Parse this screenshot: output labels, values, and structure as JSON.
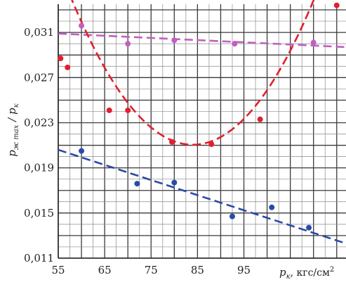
{
  "chart_data": {
    "type": "scatter",
    "xlabel_symbol": "p",
    "xlabel_subscript": "к",
    "xlabel_unit": ", кгс/см",
    "xlabel_unit_sup": "2",
    "ylabel_num_symbol": "p",
    "ylabel_num_subscript": "ж max",
    "ylabel_sep": " / ",
    "ylabel_den_symbol": "p",
    "ylabel_den_subscript": "к",
    "xlim": [
      55,
      117
    ],
    "ylim": [
      0.011,
      0.0335
    ],
    "x_ticks": [
      55,
      65,
      75,
      85,
      95
    ],
    "x_tick_labels": [
      "55",
      "65",
      "75",
      "85",
      "95"
    ],
    "y_ticks": [
      0.011,
      0.015,
      0.019,
      0.023,
      0.027,
      0.031
    ],
    "y_tick_labels": [
      "0,011",
      "0,015",
      "0,019",
      "0,023",
      "0,027",
      "0,031"
    ],
    "grid": true,
    "series": [
      {
        "color": "#c060c0",
        "points": [
          [
            60,
            0.0316
          ],
          [
            70,
            0.03
          ],
          [
            80,
            0.0303
          ],
          [
            93,
            0.03
          ],
          [
            110,
            0.0301
          ]
        ],
        "fit": {
          "kind": "linear",
          "x": [
            55,
            117
          ],
          "y": [
            0.0309,
            0.0297
          ]
        }
      },
      {
        "color": "#e0202e",
        "points": [
          [
            55.5,
            0.0287
          ],
          [
            57,
            0.0279
          ],
          [
            66,
            0.0241
          ],
          [
            70,
            0.0241
          ],
          [
            79.5,
            0.0213
          ],
          [
            88,
            0.0211
          ],
          [
            98.5,
            0.0233
          ],
          [
            115,
            0.0334
          ]
        ],
        "fit": {
          "kind": "quadratic",
          "a": 1.89e-05,
          "h": 84,
          "k": 0.02105,
          "x": [
            55.5,
            115.5
          ]
        }
      },
      {
        "color": "#2a4aa8",
        "points": [
          [
            60,
            0.0205
          ],
          [
            72,
            0.0176
          ],
          [
            80,
            0.0177
          ],
          [
            92.5,
            0.0147
          ],
          [
            101,
            0.0155
          ],
          [
            109,
            0.0137
          ]
        ],
        "fit": {
          "kind": "linear",
          "x": [
            55,
            117
          ],
          "y": [
            0.0206,
            0.0123
          ]
        }
      }
    ]
  }
}
